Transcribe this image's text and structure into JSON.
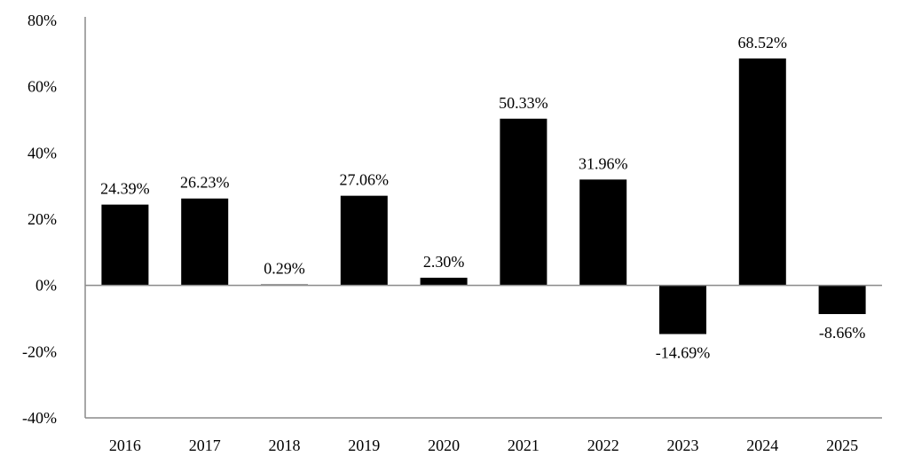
{
  "chart_data": {
    "type": "bar",
    "title": "",
    "xlabel": "",
    "ylabel": "",
    "categories": [
      "2016",
      "2017",
      "2018",
      "2019",
      "2020",
      "2021",
      "2022",
      "2023",
      "2024",
      "2025"
    ],
    "values": [
      24.39,
      26.23,
      0.29,
      27.06,
      2.3,
      50.33,
      31.96,
      -14.69,
      68.52,
      -8.66
    ],
    "data_labels": [
      "24.39%",
      "26.23%",
      "0.29%",
      "27.06%",
      "2.30%",
      "50.33%",
      "31.96%",
      "-14.69%",
      "68.52%",
      "-8.66%"
    ],
    "ylim": [
      -40,
      80
    ],
    "yticks": [
      80,
      60,
      40,
      20,
      0,
      -20,
      -40
    ],
    "ytick_labels": [
      "80%",
      "60%",
      "40%",
      "20%",
      "0%",
      "-20%",
      "-40%"
    ],
    "grid": false,
    "legend": "none",
    "bar_color": "#000000",
    "axis_color": "#8a8a8a"
  }
}
